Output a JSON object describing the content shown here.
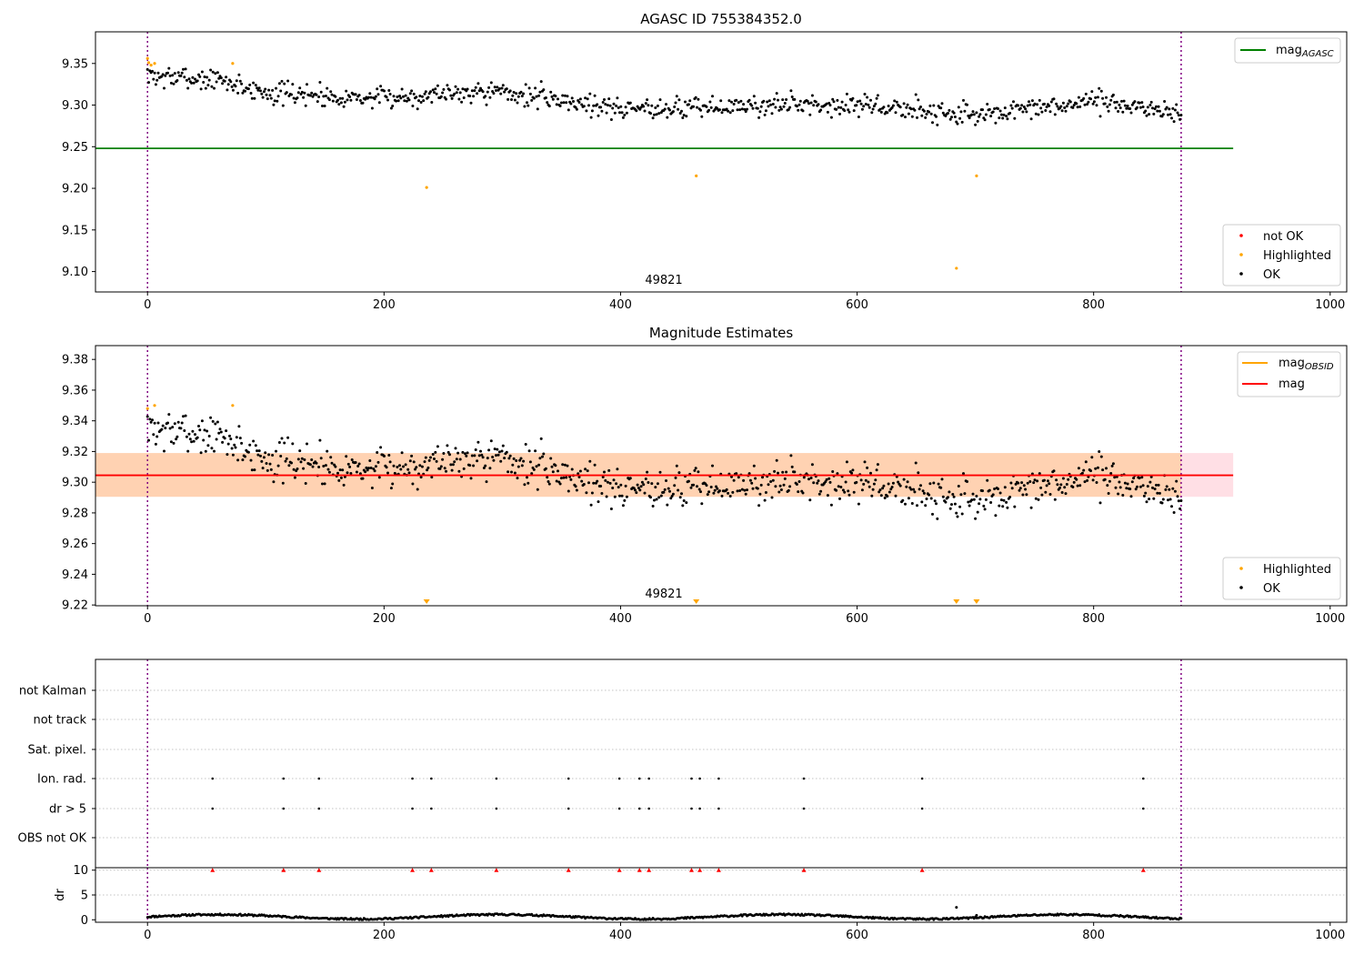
{
  "chart_data": [
    {
      "type": "scatter",
      "title": "AGASC ID 755384352.0",
      "xlim": [
        -44,
        1014
      ],
      "ylim": [
        9.0755,
        9.388
      ],
      "xticks": [
        0,
        200,
        400,
        600,
        800,
        1000
      ],
      "yticks": [
        9.1,
        9.15,
        9.2,
        9.25,
        9.3,
        9.35
      ],
      "hline": {
        "name": "mag_AGASC",
        "y": 9.248,
        "x": [
          -44,
          918
        ],
        "color": "#008000"
      },
      "vlines": [
        0,
        874
      ],
      "annotation": {
        "text": "49821",
        "x": 437
      },
      "trend": [
        [
          0,
          9.335
        ],
        [
          60,
          9.33
        ],
        [
          100,
          9.315
        ],
        [
          200,
          9.308
        ],
        [
          280,
          9.318
        ],
        [
          330,
          9.31
        ],
        [
          400,
          9.296
        ],
        [
          500,
          9.298
        ],
        [
          560,
          9.302
        ],
        [
          620,
          9.298
        ],
        [
          700,
          9.288
        ],
        [
          760,
          9.296
        ],
        [
          800,
          9.305
        ],
        [
          874,
          9.29
        ]
      ],
      "scatter": {
        "n": 870,
        "noise": 0.012,
        "seed": 7
      },
      "series": [
        {
          "name": "Highlighted",
          "color": "#ffa500",
          "points": [
            [
              0,
              9.356
            ],
            [
              1,
              9.351
            ],
            [
              3,
              9.348
            ],
            [
              6,
              9.35
            ],
            [
              72,
              9.35
            ],
            [
              236,
              9.201
            ],
            [
              464,
              9.215
            ],
            [
              684,
              9.104
            ],
            [
              701,
              9.215
            ]
          ]
        }
      ],
      "legend_upper": [
        {
          "label": "mag",
          "sub": "AGASC",
          "color": "#008000"
        }
      ],
      "legend_lower": [
        {
          "label": "not OK",
          "color": "#ff0000"
        },
        {
          "label": "Highlighted",
          "color": "#ffa500"
        },
        {
          "label": "OK",
          "color": "#000000"
        }
      ]
    },
    {
      "type": "scatter",
      "title": "Magnitude Estimates",
      "xlim": [
        -44,
        1014
      ],
      "ylim": [
        9.2195,
        9.389
      ],
      "xticks": [
        0,
        200,
        400,
        600,
        800,
        1000
      ],
      "yticks": [
        9.22,
        9.24,
        9.26,
        9.28,
        9.3,
        9.32,
        9.34,
        9.36,
        9.38
      ],
      "hline": {
        "name": "mag",
        "y": 9.3045,
        "x": [
          -44,
          918
        ],
        "color": "#ff0000"
      },
      "band_mag": [
        9.2905,
        9.319
      ],
      "band_obsid": [
        9.2905,
        9.319,
        874
      ],
      "vlines": [
        0,
        874
      ],
      "annotation": {
        "text": "49821",
        "x": 437
      },
      "trend": [
        [
          0,
          9.335
        ],
        [
          60,
          9.33
        ],
        [
          100,
          9.315
        ],
        [
          200,
          9.308
        ],
        [
          280,
          9.318
        ],
        [
          330,
          9.31
        ],
        [
          400,
          9.296
        ],
        [
          500,
          9.298
        ],
        [
          560,
          9.302
        ],
        [
          620,
          9.298
        ],
        [
          700,
          9.288
        ],
        [
          760,
          9.296
        ],
        [
          800,
          9.305
        ],
        [
          874,
          9.29
        ]
      ],
      "scatter": {
        "n": 870,
        "noise": 0.012,
        "seed": 7
      },
      "series": [
        {
          "name": "Highlighted",
          "color": "#ffa500",
          "points": [
            [
              0,
              9.348
            ],
            [
              6,
              9.35
            ],
            [
              72,
              9.35
            ]
          ]
        }
      ],
      "offscale_markers": [
        236,
        464,
        684,
        701
      ],
      "legend_upper": [
        {
          "label": "mag",
          "sub": "OBSID",
          "color": "#ffa500"
        },
        {
          "label": "mag",
          "sub": "",
          "color": "#ff0000"
        }
      ],
      "legend_lower": [
        {
          "label": "Highlighted",
          "color": "#ffa500"
        },
        {
          "label": "OK",
          "color": "#000000"
        }
      ]
    },
    {
      "type": "scatter",
      "title": "",
      "xlim": [
        -44,
        1014
      ],
      "categories": [
        "not Kalman",
        "not track",
        "Sat. pixel.",
        "Ion. rad.",
        "dr > 5",
        "OBS not OK"
      ],
      "flag_x": [
        55,
        115,
        145,
        224,
        240,
        295,
        356,
        399,
        416,
        424,
        460,
        467,
        483,
        555,
        655,
        842
      ],
      "flag_rows": [
        "Ion. rad.",
        "dr > 5"
      ],
      "vlines": [
        0,
        874
      ]
    },
    {
      "type": "scatter",
      "title": "",
      "ylabel": "dr",
      "xlim": [
        -44,
        1014
      ],
      "ylim": [
        -0.5,
        10.5
      ],
      "xticks": [
        0,
        200,
        400,
        600,
        800,
        1000
      ],
      "yticks": [
        0,
        5,
        10
      ],
      "clipped_markers": [
        55,
        115,
        145,
        224,
        240,
        295,
        356,
        399,
        416,
        424,
        460,
        467,
        483,
        555,
        655,
        842
      ],
      "outliers": [
        [
          684,
          2.5
        ],
        [
          701,
          0.9
        ]
      ],
      "vlines": [
        0,
        874
      ]
    }
  ]
}
